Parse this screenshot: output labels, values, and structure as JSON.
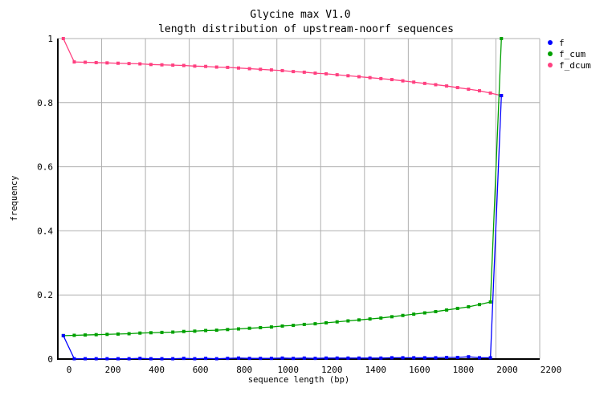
{
  "chart_data": {
    "type": "line",
    "title": "Glycine max V1.0",
    "subtitle": "length distribution of upstream-noorf sequences",
    "xlabel": "sequence length (bp)",
    "ylabel": "frequency",
    "xlim": [
      0,
      2200
    ],
    "ylim": [
      0,
      1
    ],
    "xticks": [
      "0",
      "200",
      "400",
      "600",
      "800",
      "1000",
      "1200",
      "1400",
      "1600",
      "1800",
      "2000",
      "2200"
    ],
    "yticks": [
      "0",
      "0.2",
      "0.4",
      "0.6",
      "0.8",
      "1"
    ],
    "grid": true,
    "legend_position": "right",
    "x": [
      25,
      75,
      125,
      175,
      225,
      275,
      325,
      375,
      425,
      475,
      525,
      575,
      625,
      675,
      725,
      775,
      825,
      875,
      925,
      975,
      1025,
      1075,
      1125,
      1175,
      1225,
      1275,
      1325,
      1375,
      1425,
      1475,
      1525,
      1575,
      1625,
      1675,
      1725,
      1775,
      1825,
      1875,
      1925,
      1975,
      2025
    ],
    "series": [
      {
        "name": "f",
        "color": "#0000ff",
        "values": [
          0.073,
          0.001,
          0.001,
          0.001,
          0.001,
          0.001,
          0.001,
          0.002,
          0.001,
          0.001,
          0.001,
          0.002,
          0.001,
          0.002,
          0.001,
          0.002,
          0.003,
          0.002,
          0.002,
          0.002,
          0.003,
          0.002,
          0.003,
          0.002,
          0.003,
          0.003,
          0.003,
          0.003,
          0.003,
          0.003,
          0.004,
          0.004,
          0.004,
          0.004,
          0.004,
          0.005,
          0.005,
          0.007,
          0.004,
          0.004,
          0.822
        ]
      },
      {
        "name": "f_cum",
        "color": "#00a000",
        "values": [
          0.073,
          0.074,
          0.075,
          0.076,
          0.077,
          0.078,
          0.079,
          0.081,
          0.082,
          0.083,
          0.084,
          0.086,
          0.087,
          0.089,
          0.09,
          0.092,
          0.094,
          0.096,
          0.098,
          0.1,
          0.103,
          0.105,
          0.108,
          0.11,
          0.113,
          0.116,
          0.119,
          0.122,
          0.125,
          0.128,
          0.132,
          0.136,
          0.14,
          0.144,
          0.148,
          0.153,
          0.158,
          0.163,
          0.17,
          0.178,
          1.0
        ]
      },
      {
        "name": "f_dcum",
        "color": "#ff4080",
        "values": [
          1.0,
          0.927,
          0.926,
          0.925,
          0.924,
          0.923,
          0.922,
          0.921,
          0.919,
          0.918,
          0.917,
          0.916,
          0.914,
          0.913,
          0.911,
          0.91,
          0.908,
          0.906,
          0.904,
          0.902,
          0.9,
          0.897,
          0.895,
          0.892,
          0.89,
          0.887,
          0.884,
          0.881,
          0.878,
          0.875,
          0.872,
          0.868,
          0.864,
          0.86,
          0.856,
          0.852,
          0.847,
          0.842,
          0.837,
          0.83,
          0.822
        ]
      }
    ]
  }
}
